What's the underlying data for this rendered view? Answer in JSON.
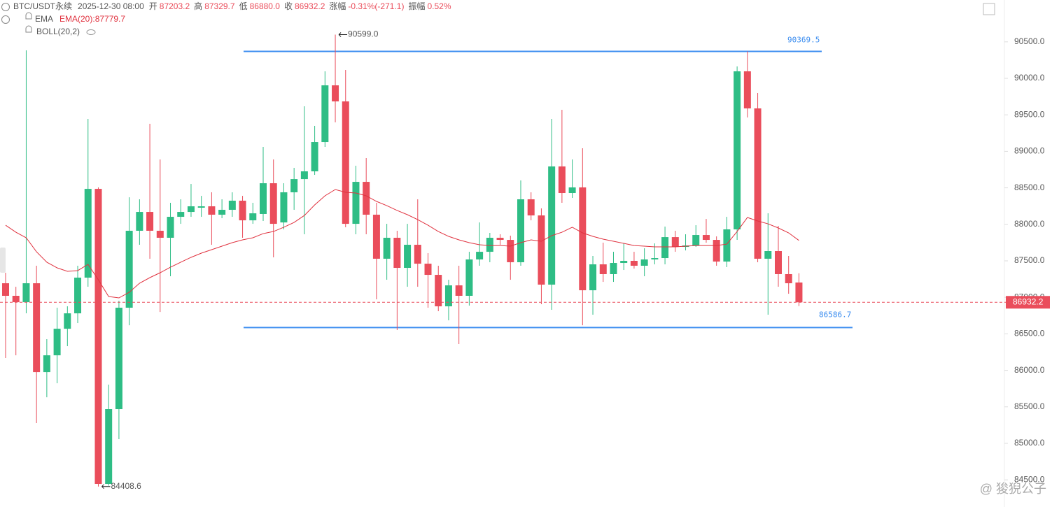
{
  "header": {
    "symbol": "BTC/USDT永续",
    "time": "2025-12-30 08:00",
    "fields": [
      {
        "name": "开",
        "value": "87203.2"
      },
      {
        "name": "高",
        "value": "87329.7"
      },
      {
        "name": "低",
        "value": "86880.0"
      },
      {
        "name": "收",
        "value": "86932.2"
      },
      {
        "name": "涨幅",
        "value": "-0.31%(-271.1)"
      },
      {
        "name": "振幅",
        "value": "0.52%"
      }
    ],
    "indicator_1": "EMA",
    "ema_label": "EMA(20):",
    "indicator_2": "BOLL(20,2)"
  },
  "watermark": "@ 狻猊公子",
  "chart_data": {
    "type": "candlestick",
    "up_color": "#2ebd85",
    "down_color": "#ea4d5b",
    "ylim": [
      84128,
      91073
    ],
    "yticks": [
      {
        "value": 84500,
        "label": "84500.0"
      },
      {
        "value": 85000,
        "label": "85000.0"
      },
      {
        "value": 85500,
        "label": "85500.0"
      },
      {
        "value": 86000,
        "label": "86000.0"
      },
      {
        "value": 86500,
        "label": "86500.0"
      },
      {
        "value": 87000,
        "label": "87000.0"
      },
      {
        "value": 87500,
        "label": "87500.0"
      },
      {
        "value": 88000,
        "label": "88000.0"
      },
      {
        "value": 88500,
        "label": "88500.0"
      },
      {
        "value": 89000,
        "label": "89000.0"
      },
      {
        "value": 89500,
        "label": "89500.0"
      },
      {
        "value": 90000,
        "label": "90000.0"
      },
      {
        "value": 90500,
        "label": "90500.0"
      }
    ],
    "open": [
      87193,
      87021,
      86934,
      87193,
      85976,
      86206,
      86570,
      86781,
      87270,
      88486,
      84444,
      85469,
      86858,
      87912,
      88170,
      87912,
      87816,
      88103,
      88170,
      88228,
      88247,
      88132,
      88199,
      88324,
      88055,
      88142,
      88563,
      88026,
      88439,
      88620,
      88726,
      89128,
      89904,
      89684,
      88007,
      88582,
      88132,
      87529,
      87816,
      87404,
      87720,
      87461,
      87308,
      86877,
      87164,
      87021,
      87519,
      87624,
      87816,
      87787,
      87481,
      88343,
      88122,
      87174,
      88793,
      88429,
      88506,
      87097,
      87452,
      87318,
      87471,
      87500,
      87433,
      87519,
      87538,
      87825,
      87691,
      87710,
      87854,
      87787,
      87490,
      87931,
      90096,
      89588,
      87529,
      87634,
      87318,
      87203.2
    ],
    "high": [
      87337,
      87145,
      90383,
      87433,
      86427,
      86858,
      86877,
      87433,
      89444,
      88506,
      85804,
      86954,
      88371,
      88343,
      89377,
      88889,
      88295,
      88343,
      88553,
      88390,
      88439,
      88343,
      88439,
      88390,
      88295,
      89061,
      88889,
      88563,
      88774,
      89617,
      89349,
      90096,
      90599,
      90115,
      88803,
      88908,
      88295,
      88007,
      87912,
      88007,
      88343,
      87605,
      87433,
      87241,
      87433,
      87624,
      88026,
      87883,
      87864,
      87845,
      88601,
      88439,
      88218,
      89444,
      89569,
      88889,
      89042,
      87567,
      87749,
      87624,
      87739,
      87624,
      87672,
      87739,
      87969,
      87912,
      87864,
      87988,
      88074,
      87835,
      88103,
      90163,
      90369.5,
      89799,
      88151,
      87979,
      87567,
      87329.7
    ],
    "low": [
      86168,
      86206,
      86781,
      85277,
      85631,
      85823,
      86331,
      86647,
      87145,
      84408.6,
      84420,
      85057,
      86618,
      87720,
      87529,
      86800,
      87289,
      88007,
      88103,
      88103,
      87720,
      88084,
      88103,
      87816,
      88007,
      88046,
      87548,
      87931,
      88199,
      87864,
      88678,
      89061,
      89397,
      87960,
      87864,
      87864,
      86973,
      87241,
      86551,
      87145,
      87145,
      86858,
      86810,
      86685,
      86360,
      86887,
      87433,
      87481,
      87720,
      87241,
      87433,
      88055,
      86906,
      86829,
      88295,
      88362,
      86618,
      86762,
      87212,
      87212,
      87375,
      87394,
      87289,
      87452,
      87452,
      87624,
      87643,
      87691,
      87749,
      87433,
      87414,
      87787,
      89464,
      87481,
      86762,
      87145,
      87049,
      86880
    ],
    "close": [
      87021,
      86934,
      87193,
      85976,
      86206,
      86570,
      86781,
      87270,
      88486,
      84444,
      85469,
      86858,
      87912,
      88170,
      87912,
      87816,
      88103,
      88170,
      88247,
      88247,
      88132,
      88199,
      88324,
      88055,
      88151,
      88563,
      88007,
      88439,
      88620,
      88726,
      89128,
      89904,
      89684,
      88007,
      88582,
      88132,
      87529,
      87816,
      87404,
      87720,
      87461,
      87308,
      86877,
      87164,
      87021,
      87519,
      87624,
      87816,
      87787,
      87481,
      88343,
      88122,
      87174,
      88793,
      88429,
      88506,
      87097,
      87452,
      87318,
      87471,
      87500,
      87433,
      87519,
      87538,
      87825,
      87691,
      87710,
      87854,
      87787,
      87490,
      87931,
      90096,
      89588,
      87529,
      87634,
      87318,
      87193,
      86932.2
    ],
    "ema": {
      "color": "#e0323f",
      "values": [
        87988,
        87892,
        87816,
        87624,
        87481,
        87404,
        87356,
        87366,
        87452,
        87241,
        87011,
        86992,
        87069,
        87193,
        87270,
        87337,
        87413,
        87481,
        87548,
        87605,
        87653,
        87701,
        87749,
        87787,
        87816,
        87873,
        87902,
        87960,
        88026,
        88122,
        88266,
        88391,
        88477,
        88439,
        88429,
        88391,
        88314,
        88256,
        88190,
        88132,
        88065,
        87988,
        87902,
        87835,
        87787,
        87749,
        87720,
        87710,
        87710,
        87701,
        87749,
        87787,
        87768,
        87845,
        87892,
        87960,
        87883,
        87835,
        87797,
        87768,
        87739,
        87710,
        87701,
        87691,
        87691,
        87691,
        87701,
        87710,
        87710,
        87710,
        87729,
        87902,
        88094,
        88046,
        88007,
        87950,
        87883,
        87779.7
      ]
    },
    "levels": [
      90369.5,
      86586.7
    ],
    "level_color": "#3d8ef0",
    "high_marker": {
      "value": 90599,
      "label": "90599.0"
    }
  }
}
